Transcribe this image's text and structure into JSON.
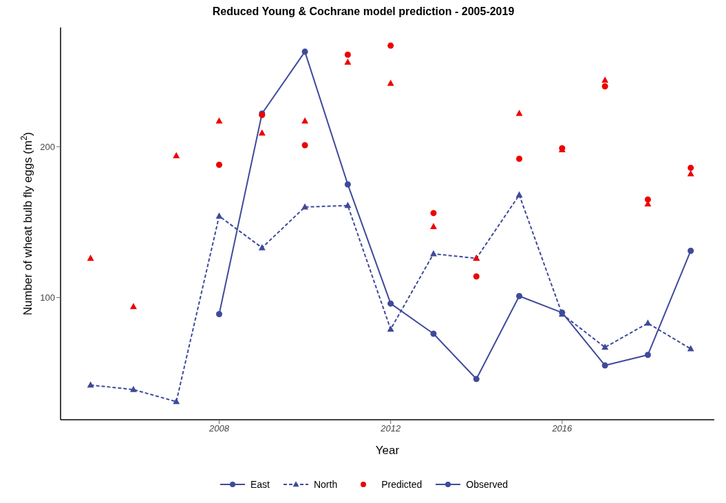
{
  "chart_data": {
    "type": "line",
    "title": "Reduced Young & Cochrane model prediction - 2005-2019",
    "xlabel": "Year",
    "ylabel": "Number of wheat bulb fly eggs (m$^{2}$)",
    "x": [
      2005,
      2006,
      2007,
      2008,
      2009,
      2010,
      2011,
      2012,
      2013,
      2014,
      2015,
      2016,
      2017,
      2018,
      2019
    ],
    "series": [
      {
        "name": "East",
        "color": "#3e4a9a",
        "marker": "circle",
        "line_style": "solid",
        "values": [
          null,
          null,
          null,
          89,
          222,
          263,
          175,
          96,
          76,
          46,
          101,
          90,
          55,
          62,
          131
        ]
      },
      {
        "name": "North",
        "color": "#3e4a9a",
        "marker": "triangle",
        "line_style": "dashed",
        "values": [
          42,
          39,
          31,
          154,
          133,
          160,
          161,
          79,
          129,
          126,
          168,
          89,
          67,
          83,
          66
        ]
      },
      {
        "name": "Predicted",
        "type": "scatter",
        "color": "#ee0000",
        "marker": "circle",
        "values": [
          null,
          null,
          null,
          188,
          221,
          201,
          261,
          267,
          156,
          114,
          192,
          199,
          240,
          165,
          186
        ]
      },
      {
        "type": "scatter",
        "color": "#ee0000",
        "marker": "triangle",
        "values": [
          126,
          94,
          194,
          217,
          209,
          217,
          256,
          242,
          147,
          126,
          222,
          198,
          244,
          162,
          182
        ]
      }
    ],
    "annotations": [
      "Observed"
    ],
    "xlim": [
      2004.3,
      2019.55
    ],
    "xticks": [
      2008,
      2012,
      2016
    ],
    "ylim": [
      19,
      279
    ],
    "yticks": [
      100,
      200
    ],
    "grid": false,
    "legend": "bottom"
  }
}
